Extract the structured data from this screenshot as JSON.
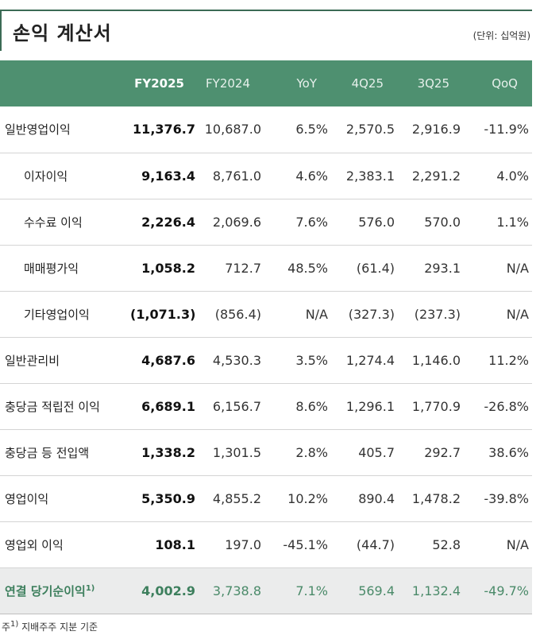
{
  "header": {
    "title": "손익 계산서",
    "unit": "(단위: 십억원)"
  },
  "table": {
    "columns": [
      "",
      "FY2025",
      "FY2024",
      "YoY",
      "4Q25",
      "3Q25",
      "QoQ"
    ],
    "rows": [
      {
        "label": "일반영업이익",
        "values": [
          "11,376.7",
          "10,687.0",
          "6.5%",
          "2,570.5",
          "2,916.9",
          "-11.9%"
        ]
      },
      {
        "label": "이자이익",
        "values": [
          "9,163.4",
          "8,761.0",
          "4.6%",
          "2,383.1",
          "2,291.2",
          "4.0%"
        ]
      },
      {
        "label": "수수료 이익",
        "values": [
          "2,226.4",
          "2,069.6",
          "7.6%",
          "576.0",
          "570.0",
          "1.1%"
        ]
      },
      {
        "label": "매매평가익",
        "values": [
          "1,058.2",
          "712.7",
          "48.5%",
          "(61.4)",
          "293.1",
          "N/A"
        ]
      },
      {
        "label": "기타영업이익",
        "values": [
          "(1,071.3)",
          "(856.4)",
          "N/A",
          "(327.3)",
          "(237.3)",
          "N/A"
        ]
      },
      {
        "label": "일반관리비",
        "values": [
          "4,687.6",
          "4,530.3",
          "3.5%",
          "1,274.4",
          "1,146.0",
          "11.2%"
        ]
      },
      {
        "label": "충당금 적립전 이익",
        "values": [
          "6,689.1",
          "6,156.7",
          "8.6%",
          "1,296.1",
          "1,770.9",
          "-26.8%"
        ]
      },
      {
        "label": "충당금 등 전입액",
        "values": [
          "1,338.2",
          "1,301.5",
          "2.8%",
          "405.7",
          "292.7",
          "38.6%"
        ]
      },
      {
        "label": "영업이익",
        "values": [
          "5,350.9",
          "4,855.2",
          "10.2%",
          "890.4",
          "1,478.2",
          "-39.8%"
        ]
      },
      {
        "label": "영업외 이익",
        "values": [
          "108.1",
          "197.0",
          "-45.1%",
          "(44.7)",
          "52.8",
          "N/A"
        ]
      },
      {
        "label": "연결 당기순이익",
        "note_mark": "1)",
        "values": [
          "4,002.9",
          "3,738.8",
          "7.1%",
          "569.4",
          "1,132.4",
          "-49.7%"
        ]
      }
    ]
  },
  "footnote": {
    "mark": "주",
    "sup": "1)",
    "text": "지배주주 지분 기준"
  },
  "colors": {
    "header_bg": "#4e9070",
    "accent_green": "#3d7f5d",
    "net_row_bg": "#ebecec"
  }
}
